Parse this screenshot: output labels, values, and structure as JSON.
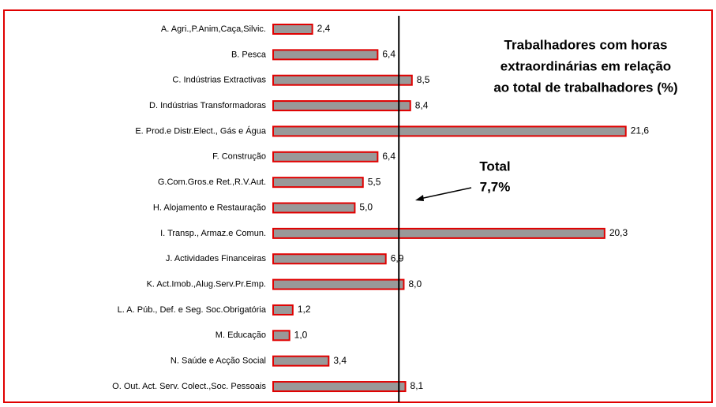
{
  "chart_data": {
    "type": "bar",
    "orientation": "horizontal",
    "title_lines": [
      "Trabalhadores com horas",
      "extraordinárias em relação",
      "ao total de trabalhadores (%)"
    ],
    "categories": [
      "A. Agri.,P.Anim,Caça,Silvic.",
      "B. Pesca",
      "C. Indústrias Extractivas",
      "D. Indústrias Transformadoras",
      "E. Prod.e Distr.Elect., Gás e Água",
      "F. Construção",
      "G.Com.Gros.e Ret.,R.V.Aut.",
      "H. Alojamento e Restauração",
      "I. Transp., Armaz.e Comun.",
      "J. Actividades Financeiras",
      "K. Act.Imob.,Alug.Serv.Pr.Emp.",
      "L. A. Púb., Def. e Seg. Soc.Obrigatória",
      "M. Educação",
      "N. Saúde e Acção Social",
      "O. Out. Act. Serv. Colect.,Soc. Pessoais"
    ],
    "values": [
      2.4,
      6.4,
      8.5,
      8.4,
      21.6,
      6.4,
      5.5,
      5.0,
      20.3,
      6.9,
      8.0,
      1.2,
      1.0,
      3.4,
      8.1
    ],
    "value_labels": [
      "2,4",
      "6,4",
      "8,5",
      "8,4",
      "21,6",
      "6,4",
      "5,5",
      "5,0",
      "20,3",
      "6,9",
      "8,0",
      "1,2",
      "1,0",
      "3,4",
      "8,1"
    ],
    "color": "#999999",
    "edge_color": "#e00000",
    "xlim": [
      0,
      22
    ],
    "reference_line": {
      "value": 7.7,
      "label": "7,7%"
    },
    "reference_name": "Total"
  }
}
